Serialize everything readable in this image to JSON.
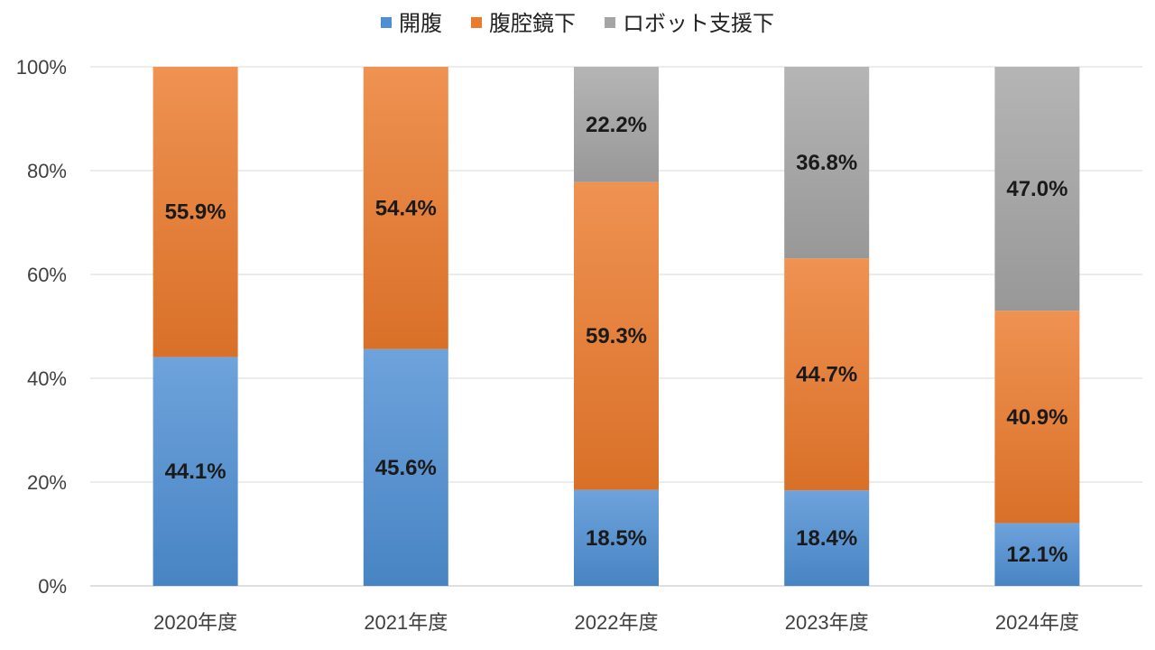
{
  "chart_data": {
    "type": "bar",
    "stacked": true,
    "percent_stacked": true,
    "categories": [
      "2020年度",
      "2021年度",
      "2022年度",
      "2023年度",
      "2024年度"
    ],
    "series": [
      {
        "name": "開腹",
        "color": "#4e8fd4",
        "values": [
          44.1,
          45.6,
          18.5,
          18.4,
          12.1
        ],
        "labels": [
          "44.1%",
          "45.6%",
          "18.5%",
          "18.4%",
          "12.1%"
        ]
      },
      {
        "name": "腹腔鏡下",
        "color": "#ec7a2c",
        "values": [
          55.9,
          54.4,
          59.3,
          44.7,
          40.9
        ],
        "labels": [
          "55.9%",
          "54.4%",
          "59.3%",
          "44.7%",
          "40.9%"
        ]
      },
      {
        "name": "ロボット支援下",
        "color": "#a5a5a5",
        "values": [
          0,
          0,
          22.2,
          36.8,
          47.0
        ],
        "labels": [
          "",
          "",
          "22.2%",
          "36.8%",
          "47.0%"
        ]
      }
    ],
    "ylim": [
      0,
      100
    ],
    "yticks": [
      0,
      20,
      40,
      60,
      80,
      100
    ],
    "ytick_labels": [
      "0%",
      "20%",
      "40%",
      "60%",
      "80%",
      "100%"
    ],
    "legend": "top-center",
    "grid": true
  }
}
